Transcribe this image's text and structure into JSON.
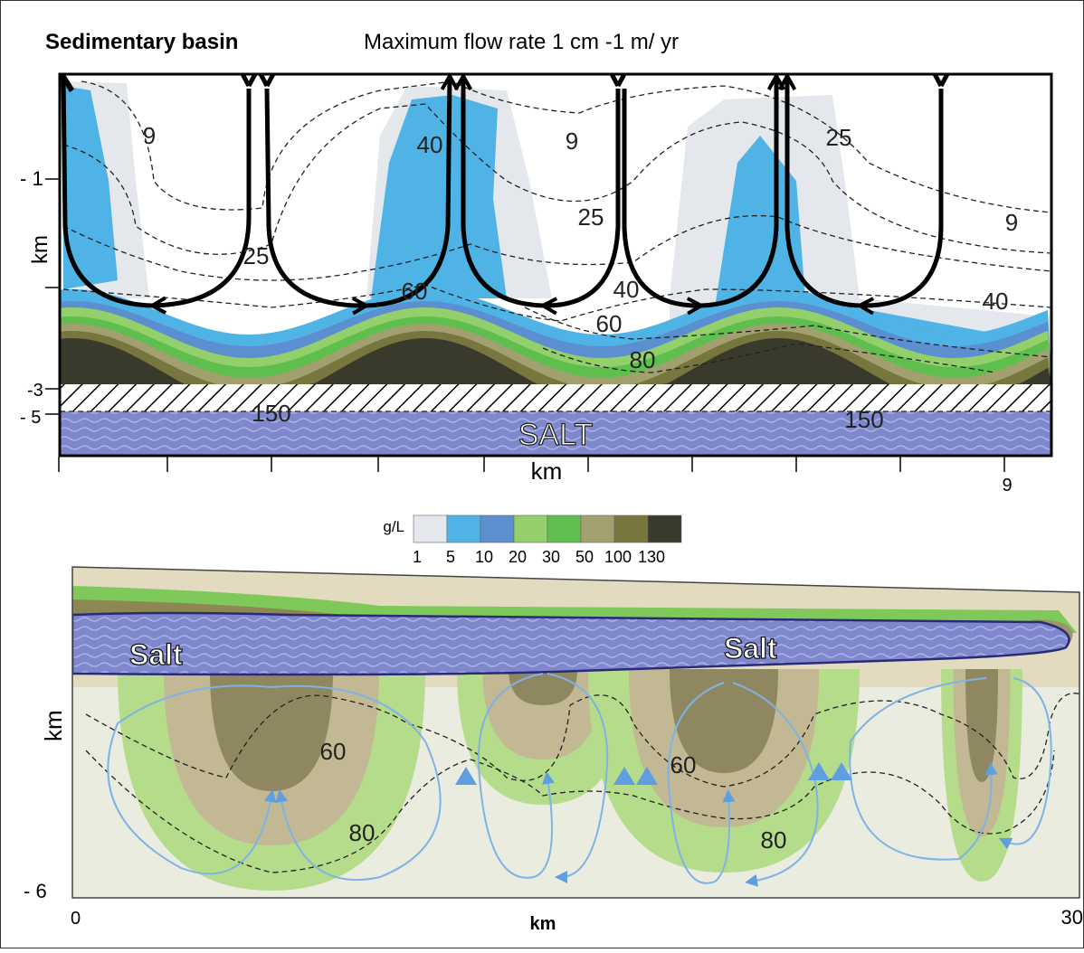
{
  "top_panel": {
    "title": "Sedimentary basin",
    "subtitle": "Maximum flow rate 1 cm -1 m/ yr",
    "y_ticks": [
      "- 1",
      "-3",
      "- 5"
    ],
    "y_label": "km",
    "x_label": "km",
    "x_end": "9",
    "contour_labels": [
      "9",
      "40",
      "9",
      "25",
      "25",
      "25",
      "9",
      "60",
      "40",
      "40",
      "60",
      "80",
      "150",
      "150"
    ],
    "salt_label": "SALT"
  },
  "legend": {
    "title": "g/L",
    "labels": [
      "1",
      "5",
      "10",
      "20",
      "30",
      "50",
      "100",
      "130"
    ],
    "colors": [
      "#e4e7ec",
      "#4fb3e6",
      "#5b8fd0",
      "#93d06c",
      "#5fbf4e",
      "#a3a070",
      "#77763f",
      "#3a3a2c"
    ]
  },
  "bottom_panel": {
    "salt_labels": [
      "Salt",
      "Salt"
    ],
    "y_label": "km",
    "y_tick": "- 6",
    "x_start": "0",
    "x_label": "km",
    "x_end": "30",
    "contour_labels": [
      "60",
      "60",
      "80",
      "80"
    ]
  }
}
